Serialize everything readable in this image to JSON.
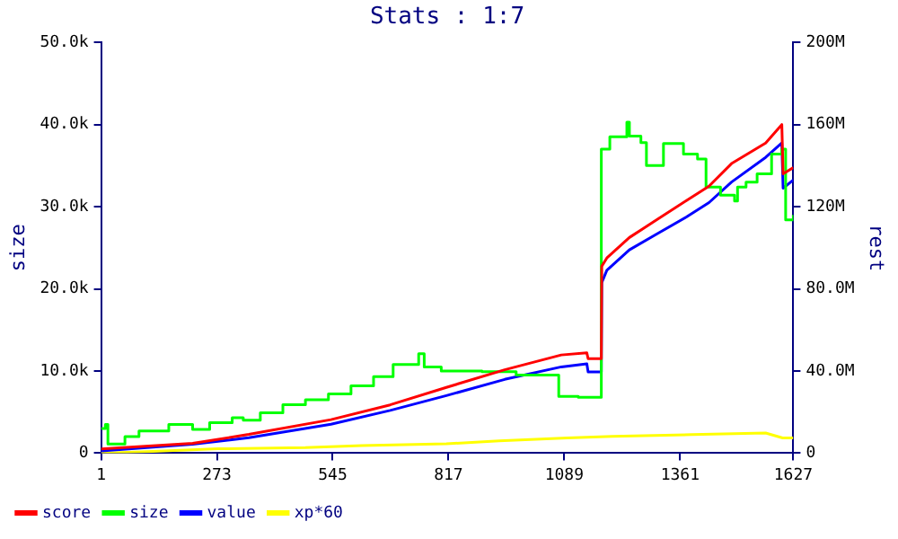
{
  "chart_data": {
    "type": "line",
    "title": "Stats : 1:7",
    "ylabel": "size",
    "y2label": "rest",
    "xlim": [
      1,
      1627
    ],
    "xticks": [
      1,
      273,
      545,
      817,
      1089,
      1361,
      1627
    ],
    "ylim": [
      0,
      50000
    ],
    "yticks": [
      {
        "value": 0,
        "label": "0"
      },
      {
        "value": 10000,
        "label": "10.0k"
      },
      {
        "value": 20000,
        "label": "20.0k"
      },
      {
        "value": 30000,
        "label": "30.0k"
      },
      {
        "value": 40000,
        "label": "40.0k"
      },
      {
        "value": 50000,
        "label": "50.0k"
      }
    ],
    "y2lim": [
      0,
      200
    ],
    "y2ticks": [
      {
        "value": 0,
        "label": "0"
      },
      {
        "value": 40,
        "label": "40.0M"
      },
      {
        "value": 80,
        "label": "80.0M"
      },
      {
        "value": 120,
        "label": "120M"
      },
      {
        "value": 160,
        "label": "160M"
      },
      {
        "value": 200,
        "label": "200M"
      }
    ],
    "legend": "bottom",
    "grid": false,
    "marker": "none",
    "series": [
      {
        "name": "score",
        "color": "#ff0000",
        "axis": "y2",
        "x": [
          1,
          216,
          348,
          541,
          680,
          812,
          949,
          1082,
          1142,
          1145,
          1176,
          1177,
          1189,
          1242,
          1309,
          1376,
          1429,
          1482,
          1562,
          1600,
          1603,
          1627
        ],
        "values": [
          2,
          4.8,
          9.1,
          16.3,
          23.5,
          32,
          40.6,
          47.8,
          48.8,
          46,
          46,
          91,
          95,
          105,
          114,
          123,
          130,
          141,
          151,
          160,
          136,
          139
        ]
      },
      {
        "name": "size",
        "type": "step",
        "color": "#00ff00",
        "x": [
          1,
          11,
          17,
          57,
          90,
          160,
          216,
          256,
          309,
          335,
          375,
          428,
          481,
          535,
          588,
          641,
          687,
          747,
          760,
          800,
          896,
          976,
          1049,
          1076,
          1122,
          1176,
          1196,
          1236,
          1242,
          1269,
          1282,
          1322,
          1369,
          1402,
          1422,
          1456,
          1489,
          1496,
          1516,
          1542,
          1576,
          1600,
          1609,
          1627
        ],
        "values": [
          3000,
          3500,
          1100,
          2000,
          2700,
          3500,
          2900,
          3700,
          4300,
          4000,
          4900,
          5900,
          6500,
          7200,
          8200,
          9300,
          10800,
          12100,
          10500,
          10000,
          9900,
          9500,
          9500,
          6900,
          6800,
          37000,
          38500,
          40300,
          38600,
          37800,
          35000,
          37700,
          36400,
          35800,
          32400,
          31400,
          30700,
          32400,
          33000,
          34000,
          36400,
          37000,
          28400,
          29000
        ]
      },
      {
        "name": "value",
        "color": "#0000ff",
        "axis": "y2",
        "x": [
          1,
          216,
          348,
          541,
          680,
          812,
          949,
          1082,
          1142,
          1145,
          1176,
          1177,
          1189,
          1242,
          1309,
          1376,
          1429,
          1482,
          1562,
          1600,
          1603,
          1627
        ],
        "values": [
          1,
          4.3,
          7.5,
          14.1,
          20.8,
          28,
          35.9,
          42,
          43.5,
          39.5,
          39.5,
          83,
          89,
          99,
          107,
          115,
          122,
          132,
          144,
          151,
          129,
          133
        ]
      },
      {
        "name": "xp*60",
        "color": "#ffff00",
        "axis": "y2",
        "x": [
          1,
          123,
          276,
          481,
          614,
          812,
          936,
          1096,
          1202,
          1389,
          1562,
          1602,
          1627
        ],
        "values": [
          0,
          0.8,
          2.1,
          2.7,
          3.7,
          4.5,
          6,
          7.4,
          8.2,
          9,
          9.8,
          7.4,
          7.4
        ]
      }
    ]
  }
}
